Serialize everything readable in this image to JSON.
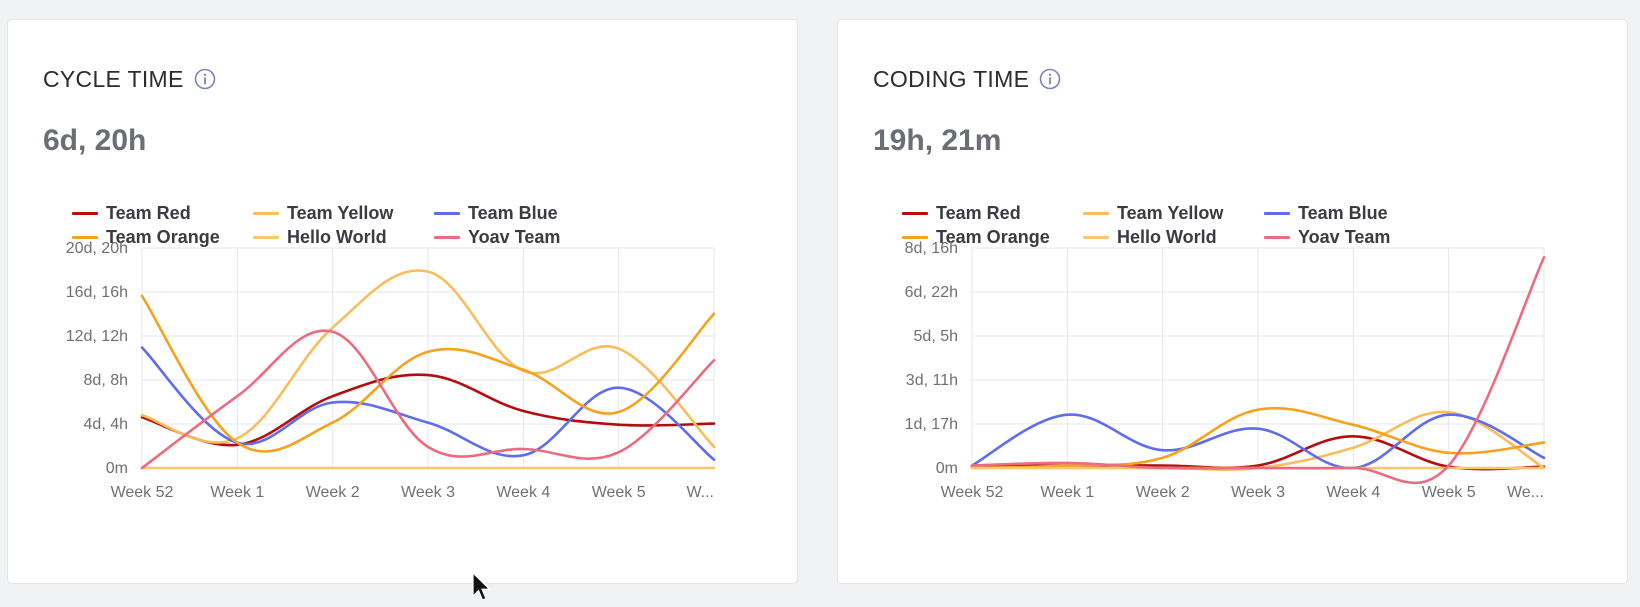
{
  "cards": [
    {
      "title": "CYCLE TIME",
      "value": "6d, 20h",
      "info_icon": "info-icon",
      "legend": [
        {
          "name": "Team Red",
          "color": "#b50d0d"
        },
        {
          "name": "Team Yellow",
          "color": "#fbbd5a"
        },
        {
          "name": "Team Blue",
          "color": "#5f6cf0"
        },
        {
          "name": "Team Orange",
          "color": "#f5a21d"
        },
        {
          "name": "Hello World",
          "color": "#fcc66d"
        },
        {
          "name": "Yoav Team",
          "color": "#ec6b80"
        }
      ]
    },
    {
      "title": "CODING TIME",
      "value": "19h, 21m",
      "info_icon": "info-icon",
      "legend": [
        {
          "name": "Team Red",
          "color": "#b50d0d"
        },
        {
          "name": "Team Yellow",
          "color": "#fbbd5a"
        },
        {
          "name": "Team Blue",
          "color": "#5f6cf0"
        },
        {
          "name": "Team Orange",
          "color": "#f5a21d"
        },
        {
          "name": "Hello World",
          "color": "#fcc66d"
        },
        {
          "name": "Yoav Team",
          "color": "#ec6b80"
        }
      ]
    }
  ],
  "chart_data": [
    {
      "type": "line",
      "title": "CYCLE TIME",
      "x": [
        "Week 52",
        "Week 1",
        "Week 2",
        "Week 3",
        "Week 4",
        "Week 5",
        "W..."
      ],
      "y_tick_labels": [
        "0m",
        "4d, 4h",
        "8d, 8h",
        "12d, 12h",
        "16d, 16h",
        "20d, 20h"
      ],
      "y_unit": "days",
      "ylim": [
        0,
        20.833
      ],
      "grid": true,
      "legend_position": "top-left",
      "series": [
        {
          "name": "Team Red",
          "color": "#b50d0d",
          "values": [
            4.8,
            2.2,
            6.8,
            8.8,
            5.4,
            4.1,
            4.2
          ]
        },
        {
          "name": "Team Yellow",
          "color": "#fbbd5a",
          "values": [
            5.0,
            2.8,
            13.3,
            18.6,
            9.2,
            11.3,
            2.0
          ]
        },
        {
          "name": "Team Blue",
          "color": "#5f6cf0",
          "values": [
            11.4,
            2.4,
            6.2,
            4.3,
            1.2,
            7.6,
            0.8
          ]
        },
        {
          "name": "Team Orange",
          "color": "#f5a21d",
          "values": [
            16.3,
            2.4,
            4.3,
            11.0,
            9.3,
            5.3,
            14.6
          ]
        },
        {
          "name": "Hello World",
          "color": "#fcc66d",
          "values": [
            0,
            0,
            0,
            0,
            0,
            0,
            0
          ]
        },
        {
          "name": "Yoav Team",
          "color": "#ec6b80",
          "values": [
            0,
            6.8,
            12.9,
            2.0,
            1.8,
            1.5,
            10.2
          ]
        }
      ]
    },
    {
      "type": "line",
      "title": "CODING TIME",
      "x": [
        "Week 52",
        "Week 1",
        "Week 2",
        "Week 3",
        "Week 4",
        "Week 5",
        "We..."
      ],
      "y_tick_labels": [
        "0m",
        "1d, 17h",
        "3d, 11h",
        "5d, 5h",
        "6d, 22h",
        "8d, 16h"
      ],
      "y_unit": "days",
      "ylim": [
        0,
        8.667
      ],
      "grid": true,
      "legend_position": "top-left",
      "series": [
        {
          "name": "Team Red",
          "color": "#b50d0d",
          "values": [
            0.05,
            0.1,
            0.1,
            0.1,
            1.25,
            0.05,
            0.05
          ]
        },
        {
          "name": "Team Yellow",
          "color": "#fbbd5a",
          "values": [
            0,
            0,
            0,
            0,
            0.8,
            2.2,
            0
          ]
        },
        {
          "name": "Team Blue",
          "color": "#5f6cf0",
          "values": [
            0.1,
            2.1,
            0.7,
            1.55,
            0,
            2.1,
            0.4
          ]
        },
        {
          "name": "Team Orange",
          "color": "#f5a21d",
          "values": [
            0,
            0.1,
            0.4,
            2.3,
            1.7,
            0.6,
            1.0
          ]
        },
        {
          "name": "Hello World",
          "color": "#fcc66d",
          "values": [
            0,
            0,
            0,
            0,
            0,
            0,
            0
          ]
        },
        {
          "name": "Yoav Team",
          "color": "#ec6b80",
          "values": [
            0.1,
            0.2,
            0,
            0,
            0,
            0.1,
            8.3
          ]
        }
      ]
    }
  ]
}
